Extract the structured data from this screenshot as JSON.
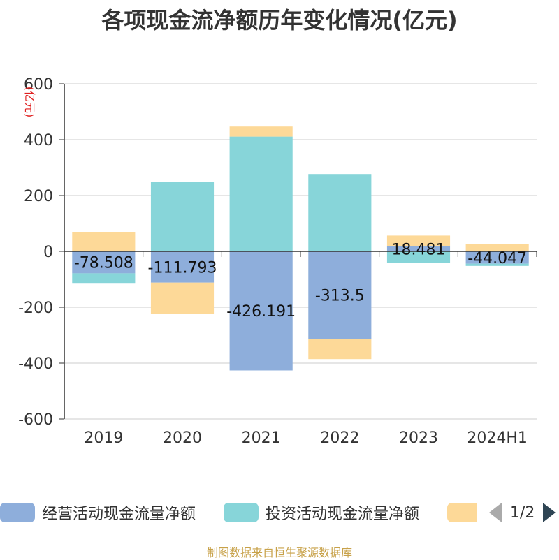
{
  "title": "各项现金流净额历年变化情况(亿元)",
  "source": "制图数据来自恒生聚源数据库",
  "legend": {
    "items": [
      {
        "label": "经营活动现金流量净额",
        "color": "#8eaedb"
      },
      {
        "label": "投资活动现金流量净额",
        "color": "#87d5d9"
      },
      {
        "label": "",
        "color": "#fdd998"
      }
    ],
    "pager": "1/2"
  },
  "chart_data": {
    "type": "bar",
    "stacked": true,
    "categories": [
      "2019",
      "2020",
      "2021",
      "2022",
      "2023",
      "2024H1"
    ],
    "ylabel": "(亿元)",
    "ylim": [
      -600,
      600
    ],
    "yticks": [
      "600",
      "400",
      "200",
      "0",
      "-200",
      "-400",
      "-600"
    ],
    "grid": true,
    "series": [
      {
        "name": "经营活动现金流量净额",
        "color": "#8eaedb",
        "values": [
          -78.508,
          -111.793,
          -426.191,
          -313.5,
          18.481,
          -44.047
        ],
        "labels": [
          "-78.508",
          "-111.793",
          "-426.191",
          "-313.5",
          "18.481",
          "-44.047"
        ]
      },
      {
        "name": "投资活动现金流量净额",
        "color": "#87d5d9",
        "values": [
          -37,
          249,
          411,
          277,
          -40,
          -8
        ]
      },
      {
        "color": "#fdd998",
        "values": [
          70,
          -113,
          36,
          -72,
          38,
          27
        ]
      }
    ]
  }
}
